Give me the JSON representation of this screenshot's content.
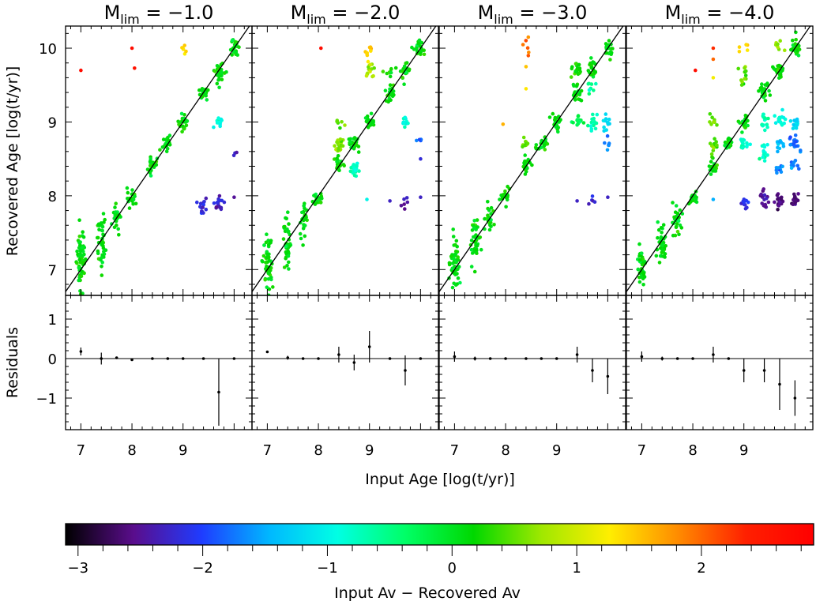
{
  "chart_data": {
    "type": "scatter",
    "layout": "4 columns x 2 rows (scatter panel over residuals panel)",
    "panel_prefix": "M",
    "panel_subscript": "lim",
    "panels": [
      {
        "title": "−1.0",
        "clusters": [
          {
            "x": 7.0,
            "y": 7.12,
            "n": 58,
            "spread": 0.22,
            "c": 0.1
          },
          {
            "x": 7.4,
            "y": 7.38,
            "n": 40,
            "spread": 0.2,
            "c": 0.1
          },
          {
            "x": 7.7,
            "y": 7.72,
            "n": 24,
            "spread": 0.12,
            "c": 0.1
          },
          {
            "x": 8.0,
            "y": 7.97,
            "n": 22,
            "spread": 0.06,
            "c": 0.1
          },
          {
            "x": 8.4,
            "y": 8.4,
            "n": 24,
            "spread": 0.06,
            "c": 0.1
          },
          {
            "x": 8.7,
            "y": 8.7,
            "n": 22,
            "spread": 0.05,
            "c": 0.1
          },
          {
            "x": 9.0,
            "y": 9.0,
            "n": 22,
            "spread": 0.05,
            "c": 0.1
          },
          {
            "x": 9.4,
            "y": 9.4,
            "n": 22,
            "spread": 0.05,
            "c": 0.1
          },
          {
            "x": 9.7,
            "y": 9.7,
            "n": 24,
            "spread": 0.06,
            "c": 0.1
          },
          {
            "x": 10.0,
            "y": 10.0,
            "n": 24,
            "spread": 0.06,
            "c": 0.1
          },
          {
            "x": 9.7,
            "y": 9.6,
            "n": 12,
            "spread": 0.08,
            "c": 0.1
          },
          {
            "x": 9.7,
            "y": 9.03,
            "n": 12,
            "spread": 0.04,
            "c": -0.9
          },
          {
            "x": 9.4,
            "y": 7.85,
            "n": 14,
            "spread": 0.06,
            "c": -2.2
          },
          {
            "x": 9.7,
            "y": 7.93,
            "n": 16,
            "spread": 0.05,
            "c": -2.3
          },
          {
            "x": 9.0,
            "y": 9.98,
            "n": 6,
            "spread": 0.04,
            "c": 1.4
          },
          {
            "x": 10.0,
            "y": 8.6,
            "n": 3,
            "spread": 0.05,
            "c": -2.3
          }
        ],
        "outliers": [
          {
            "x": 7.0,
            "y": 9.7,
            "c": 2.7
          },
          {
            "x": 8.0,
            "y": 10.0,
            "c": 2.7
          },
          {
            "x": 8.05,
            "y": 9.73,
            "c": 2.6
          },
          {
            "x": 10.0,
            "y": 7.98,
            "c": -2.5
          }
        ],
        "residuals": [
          {
            "x": 7.0,
            "value": 0.18,
            "err": 0.1
          },
          {
            "x": 7.4,
            "value": 0.0,
            "err": 0.15
          },
          {
            "x": 7.7,
            "value": 0.02,
            "err": 0.03
          },
          {
            "x": 8.0,
            "value": -0.03,
            "err": 0.03
          },
          {
            "x": 8.4,
            "value": 0.0,
            "err": 0.02
          },
          {
            "x": 8.7,
            "value": 0.0,
            "err": 0.02
          },
          {
            "x": 9.0,
            "value": 0.0,
            "err": 0.02
          },
          {
            "x": 9.4,
            "value": 0.0,
            "err": 0.02
          },
          {
            "x": 9.7,
            "value": -0.85,
            "err": 0.85
          },
          {
            "x": 10.0,
            "value": 0.0,
            "err": 0.02
          }
        ]
      },
      {
        "title": "−2.0",
        "clusters": [
          {
            "x": 7.0,
            "y": 7.1,
            "n": 55,
            "spread": 0.2,
            "c": 0.1
          },
          {
            "x": 7.4,
            "y": 7.35,
            "n": 42,
            "spread": 0.2,
            "c": 0.1
          },
          {
            "x": 7.7,
            "y": 7.68,
            "n": 26,
            "spread": 0.12,
            "c": 0.1
          },
          {
            "x": 8.0,
            "y": 7.98,
            "n": 22,
            "spread": 0.05,
            "c": 0.1
          },
          {
            "x": 8.4,
            "y": 8.4,
            "n": 22,
            "spread": 0.06,
            "c": 0.1
          },
          {
            "x": 8.4,
            "y": 8.7,
            "n": 24,
            "spread": 0.05,
            "c": 0.55
          },
          {
            "x": 8.7,
            "y": 8.7,
            "n": 24,
            "spread": 0.05,
            "c": 0.1
          },
          {
            "x": 8.7,
            "y": 8.38,
            "n": 22,
            "spread": 0.05,
            "c": -0.8
          },
          {
            "x": 9.0,
            "y": 9.0,
            "n": 22,
            "spread": 0.05,
            "c": 0.1
          },
          {
            "x": 9.0,
            "y": 9.7,
            "n": 14,
            "spread": 0.06,
            "c": 0.8
          },
          {
            "x": 9.0,
            "y": 9.95,
            "n": 10,
            "spread": 0.06,
            "c": 1.4
          },
          {
            "x": 9.4,
            "y": 9.4,
            "n": 22,
            "spread": 0.06,
            "c": 0.1
          },
          {
            "x": 9.4,
            "y": 9.66,
            "n": 10,
            "spread": 0.06,
            "c": 0.2
          },
          {
            "x": 9.7,
            "y": 9.7,
            "n": 24,
            "spread": 0.06,
            "c": 0.1
          },
          {
            "x": 9.7,
            "y": 9.0,
            "n": 12,
            "spread": 0.04,
            "c": -0.9
          },
          {
            "x": 10.0,
            "y": 10.0,
            "n": 24,
            "spread": 0.06,
            "c": 0.1
          },
          {
            "x": 8.4,
            "y": 9.0,
            "n": 6,
            "spread": 0.04,
            "c": 0.5
          },
          {
            "x": 10.0,
            "y": 8.7,
            "n": 4,
            "spread": 0.05,
            "c": -1.9
          },
          {
            "x": 9.7,
            "y": 7.93,
            "n": 6,
            "spread": 0.05,
            "c": -2.3
          }
        ],
        "outliers": [
          {
            "x": 8.05,
            "y": 10.0,
            "c": 2.7
          },
          {
            "x": 9.4,
            "y": 7.93,
            "c": -2.3
          },
          {
            "x": 10.0,
            "y": 8.5,
            "c": -2.2
          },
          {
            "x": 10.0,
            "y": 7.98,
            "c": -2.3
          },
          {
            "x": 8.95,
            "y": 7.95,
            "c": -1.0
          }
        ],
        "residuals": [
          {
            "x": 7.0,
            "value": 0.17,
            "err": 0.03
          },
          {
            "x": 7.4,
            "value": 0.02,
            "err": 0.05
          },
          {
            "x": 7.7,
            "value": 0.0,
            "err": 0.03
          },
          {
            "x": 8.0,
            "value": 0.0,
            "err": 0.02
          },
          {
            "x": 8.4,
            "value": 0.1,
            "err": 0.2
          },
          {
            "x": 8.7,
            "value": -0.1,
            "err": 0.2
          },
          {
            "x": 9.0,
            "value": 0.3,
            "err": 0.4
          },
          {
            "x": 9.4,
            "value": 0.0,
            "err": 0.02
          },
          {
            "x": 9.7,
            "value": -0.3,
            "err": 0.38
          },
          {
            "x": 10.0,
            "value": 0.0,
            "err": 0.02
          }
        ]
      },
      {
        "title": "−3.0",
        "clusters": [
          {
            "x": 7.0,
            "y": 7.05,
            "n": 50,
            "spread": 0.18,
            "c": 0.1
          },
          {
            "x": 7.4,
            "y": 7.4,
            "n": 40,
            "spread": 0.18,
            "c": 0.1
          },
          {
            "x": 7.7,
            "y": 7.68,
            "n": 24,
            "spread": 0.1,
            "c": 0.1
          },
          {
            "x": 8.0,
            "y": 7.98,
            "n": 22,
            "spread": 0.05,
            "c": 0.1
          },
          {
            "x": 8.4,
            "y": 8.4,
            "n": 22,
            "spread": 0.05,
            "c": 0.1
          },
          {
            "x": 8.4,
            "y": 8.7,
            "n": 10,
            "spread": 0.04,
            "c": 0.55
          },
          {
            "x": 8.7,
            "y": 8.7,
            "n": 22,
            "spread": 0.05,
            "c": 0.1
          },
          {
            "x": 9.0,
            "y": 9.0,
            "n": 22,
            "spread": 0.05,
            "c": 0.1
          },
          {
            "x": 9.4,
            "y": 9.4,
            "n": 26,
            "spread": 0.06,
            "c": 0.1
          },
          {
            "x": 9.4,
            "y": 9.7,
            "n": 18,
            "spread": 0.06,
            "c": 0.2
          },
          {
            "x": 9.4,
            "y": 9.0,
            "n": 14,
            "spread": 0.04,
            "c": -0.3
          },
          {
            "x": 9.7,
            "y": 9.7,
            "n": 22,
            "spread": 0.06,
            "c": 0.1
          },
          {
            "x": 9.7,
            "y": 9.0,
            "n": 16,
            "spread": 0.05,
            "c": -0.8
          },
          {
            "x": 10.0,
            "y": 10.0,
            "n": 22,
            "spread": 0.06,
            "c": 0.1
          },
          {
            "x": 10.0,
            "y": 9.0,
            "n": 12,
            "spread": 0.05,
            "c": -1.2
          },
          {
            "x": 10.0,
            "y": 8.72,
            "n": 6,
            "spread": 0.04,
            "c": -1.8
          },
          {
            "x": 9.7,
            "y": 9.45,
            "n": 8,
            "spread": 0.05,
            "c": -0.5
          },
          {
            "x": 8.4,
            "y": 10.0,
            "n": 6,
            "spread": 0.08,
            "c": 2.0
          },
          {
            "x": 9.7,
            "y": 7.93,
            "n": 5,
            "spread": 0.04,
            "c": -2.3
          }
        ],
        "outliers": [
          {
            "x": 8.4,
            "y": 9.75,
            "c": 1.5
          },
          {
            "x": 8.4,
            "y": 9.45,
            "c": 1.3
          },
          {
            "x": 7.95,
            "y": 8.97,
            "c": 1.6
          },
          {
            "x": 9.4,
            "y": 7.93,
            "c": -2.3
          },
          {
            "x": 10.0,
            "y": 7.98,
            "c": -2.3
          }
        ],
        "residuals": [
          {
            "x": 7.0,
            "value": 0.05,
            "err": 0.13
          },
          {
            "x": 7.4,
            "value": 0.0,
            "err": 0.05
          },
          {
            "x": 7.7,
            "value": 0.0,
            "err": 0.03
          },
          {
            "x": 8.0,
            "value": 0.0,
            "err": 0.02
          },
          {
            "x": 8.4,
            "value": 0.0,
            "err": 0.02
          },
          {
            "x": 8.7,
            "value": 0.0,
            "err": 0.02
          },
          {
            "x": 9.0,
            "value": 0.0,
            "err": 0.02
          },
          {
            "x": 9.4,
            "value": 0.1,
            "err": 0.2
          },
          {
            "x": 9.7,
            "value": -0.3,
            "err": 0.3
          },
          {
            "x": 10.0,
            "value": -0.45,
            "err": 0.45
          }
        ]
      },
      {
        "title": "−4.0",
        "clusters": [
          {
            "x": 7.0,
            "y": 7.05,
            "n": 42,
            "spread": 0.15,
            "c": 0.1
          },
          {
            "x": 7.4,
            "y": 7.35,
            "n": 36,
            "spread": 0.15,
            "c": 0.1
          },
          {
            "x": 7.7,
            "y": 7.65,
            "n": 26,
            "spread": 0.12,
            "c": 0.1
          },
          {
            "x": 8.0,
            "y": 7.97,
            "n": 22,
            "spread": 0.05,
            "c": 0.1
          },
          {
            "x": 8.4,
            "y": 8.4,
            "n": 22,
            "spread": 0.05,
            "c": 0.1
          },
          {
            "x": 8.4,
            "y": 8.7,
            "n": 14,
            "spread": 0.05,
            "c": 0.5
          },
          {
            "x": 8.4,
            "y": 9.0,
            "n": 8,
            "spread": 0.05,
            "c": 0.5
          },
          {
            "x": 8.7,
            "y": 8.7,
            "n": 24,
            "spread": 0.05,
            "c": 0.1
          },
          {
            "x": 9.0,
            "y": 9.0,
            "n": 22,
            "spread": 0.05,
            "c": 0.1
          },
          {
            "x": 9.0,
            "y": 9.6,
            "n": 14,
            "spread": 0.08,
            "c": 0.5
          },
          {
            "x": 9.0,
            "y": 8.7,
            "n": 16,
            "spread": 0.05,
            "c": -0.8
          },
          {
            "x": 9.0,
            "y": 7.9,
            "n": 10,
            "spread": 0.04,
            "c": -2.1
          },
          {
            "x": 9.0,
            "y": 10.02,
            "n": 5,
            "spread": 0.04,
            "c": 1.4
          },
          {
            "x": 9.4,
            "y": 9.4,
            "n": 24,
            "spread": 0.06,
            "c": 0.1
          },
          {
            "x": 9.4,
            "y": 9.0,
            "n": 16,
            "spread": 0.05,
            "c": -0.7
          },
          {
            "x": 9.4,
            "y": 8.6,
            "n": 14,
            "spread": 0.05,
            "c": -0.9
          },
          {
            "x": 9.4,
            "y": 7.95,
            "n": 16,
            "spread": 0.05,
            "c": -2.5
          },
          {
            "x": 9.7,
            "y": 9.7,
            "n": 24,
            "spread": 0.06,
            "c": 0.1
          },
          {
            "x": 9.7,
            "y": 9.0,
            "n": 18,
            "spread": 0.05,
            "c": -0.9
          },
          {
            "x": 9.7,
            "y": 8.7,
            "n": 12,
            "spread": 0.05,
            "c": -1.4
          },
          {
            "x": 9.7,
            "y": 8.37,
            "n": 10,
            "spread": 0.04,
            "c": -1.7
          },
          {
            "x": 9.7,
            "y": 7.92,
            "n": 18,
            "spread": 0.05,
            "c": -2.6
          },
          {
            "x": 10.0,
            "y": 10.0,
            "n": 24,
            "spread": 0.06,
            "c": 0.1
          },
          {
            "x": 10.0,
            "y": 9.0,
            "n": 14,
            "spread": 0.05,
            "c": -1.2
          },
          {
            "x": 10.0,
            "y": 8.7,
            "n": 18,
            "spread": 0.05,
            "c": -1.8
          },
          {
            "x": 10.0,
            "y": 8.4,
            "n": 10,
            "spread": 0.05,
            "c": -1.7
          },
          {
            "x": 10.0,
            "y": 7.95,
            "n": 14,
            "spread": 0.05,
            "c": -2.6
          },
          {
            "x": 9.7,
            "y": 10.0,
            "n": 8,
            "spread": 0.05,
            "c": 0.6
          }
        ],
        "outliers": [
          {
            "x": 8.05,
            "y": 9.7,
            "c": 2.7
          },
          {
            "x": 8.4,
            "y": 10.0,
            "c": 2.3
          },
          {
            "x": 8.4,
            "y": 9.85,
            "c": 2.0
          },
          {
            "x": 8.4,
            "y": 9.6,
            "c": 1.2
          },
          {
            "x": 8.4,
            "y": 7.95,
            "c": -1.5
          }
        ],
        "residuals": [
          {
            "x": 7.0,
            "value": 0.05,
            "err": 0.13
          },
          {
            "x": 7.4,
            "value": 0.0,
            "err": 0.05
          },
          {
            "x": 7.7,
            "value": 0.0,
            "err": 0.03
          },
          {
            "x": 8.0,
            "value": 0.0,
            "err": 0.02
          },
          {
            "x": 8.4,
            "value": 0.1,
            "err": 0.2
          },
          {
            "x": 8.7,
            "value": 0.0,
            "err": 0.02
          },
          {
            "x": 9.0,
            "value": -0.3,
            "err": 0.3
          },
          {
            "x": 9.4,
            "value": -0.3,
            "err": 0.3
          },
          {
            "x": 9.7,
            "value": -0.65,
            "err": 0.65
          },
          {
            "x": 10.0,
            "value": -1.0,
            "err": 0.45
          }
        ]
      }
    ],
    "x_axis": {
      "label": "Input Age [log(t/yr)]",
      "range": [
        6.7,
        10.35
      ],
      "ticks": [
        "7",
        "8",
        "9"
      ],
      "minor_step": 0.2
    },
    "y_axis_top": {
      "label": "Recovered Age [log(t/yr)]",
      "range": [
        6.65,
        10.3
      ],
      "ticks": [
        "7",
        "8",
        "9",
        "10"
      ],
      "minor_step": 0.2
    },
    "y_axis_bottom": {
      "label": "Residuals",
      "range": [
        -1.8,
        1.6
      ],
      "ticks": [
        "1",
        "0",
        "−1"
      ],
      "minor_step": 0.2
    },
    "reference_line": "y = x",
    "colorbar": {
      "label": "Input Av − Recovered Av",
      "range": [
        -3.1,
        2.9
      ],
      "ticks": [
        "−3",
        "−2",
        "−1",
        "0",
        "1",
        "2"
      ],
      "colormap": "rainbow",
      "stops": [
        "#000000",
        "#5a0d8c",
        "#1f3cff",
        "#00b8ff",
        "#00ffe4",
        "#00ff66",
        "#00d800",
        "#a0e800",
        "#ffee00",
        "#ff8c00",
        "#ff2000",
        "#ff0000"
      ]
    }
  }
}
